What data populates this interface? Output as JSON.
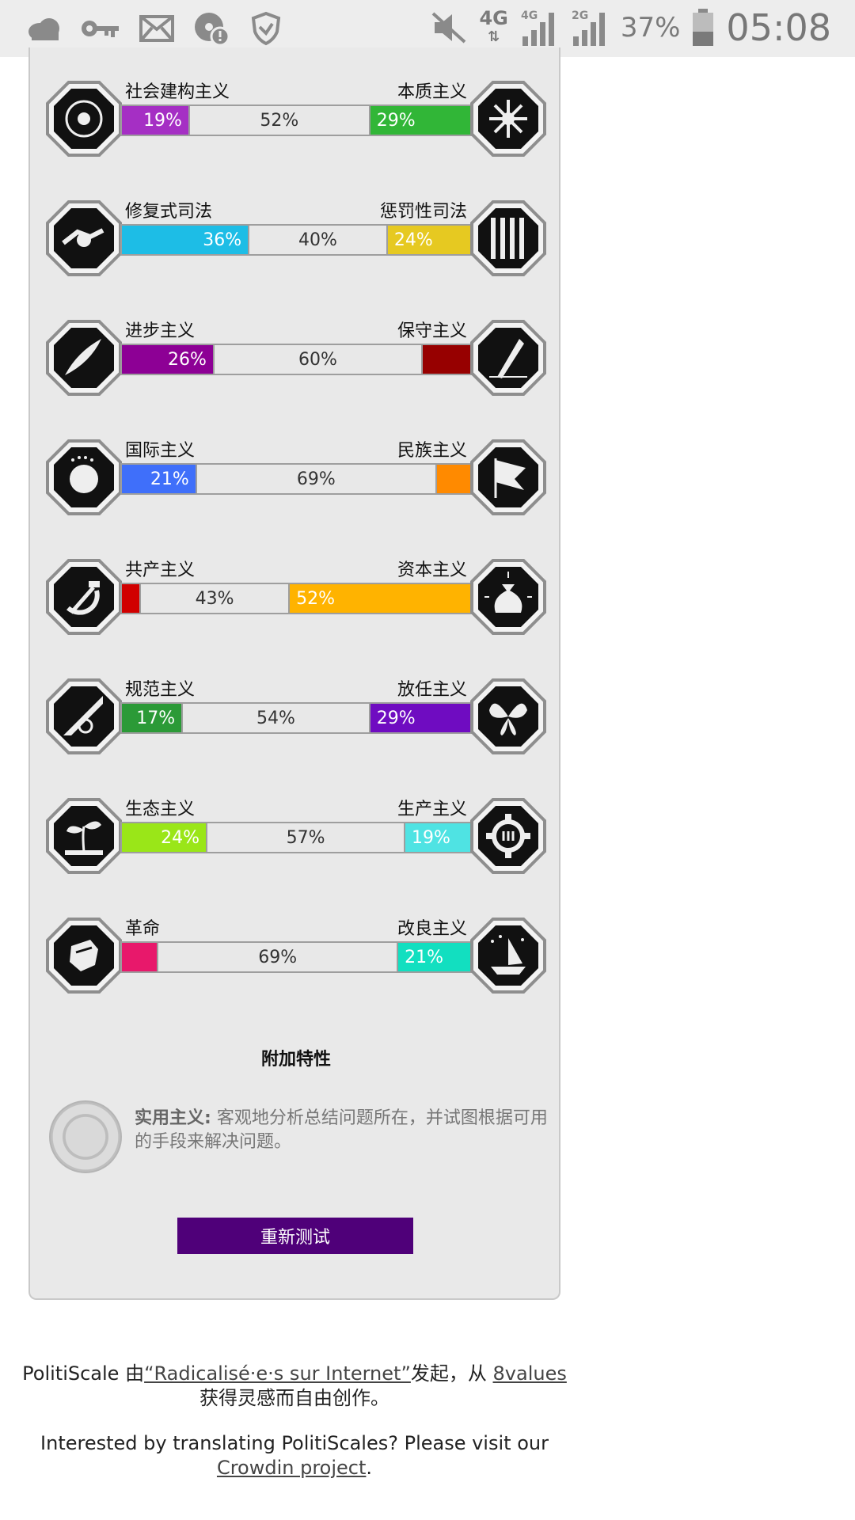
{
  "status_bar": {
    "network_4g": "4G",
    "network_4g_small": "4G",
    "network_2g": "2G",
    "battery": "37%",
    "time": "05:08"
  },
  "axes": [
    {
      "left_label": "社会建构主义",
      "right_label": "本质主义",
      "left_pct": 19,
      "center_pct": 52,
      "right_pct": 29,
      "left_text": "19%",
      "center_text": "52%",
      "right_text": "29%",
      "left_color": "#a52fc4",
      "right_color": "#31b637",
      "left_icon": "eye-icon",
      "right_icon": "flower-icon"
    },
    {
      "left_label": "修复式司法",
      "right_label": "惩罚性司法",
      "left_pct": 36,
      "center_pct": 40,
      "right_pct": 24,
      "left_text": "36%",
      "center_text": "40%",
      "right_text": "24%",
      "left_color": "#1dbde6",
      "right_color": "#e6c921",
      "left_icon": "handshake-icon",
      "right_icon": "prison-bars-icon"
    },
    {
      "left_label": "进步主义",
      "right_label": "保守主义",
      "left_pct": 26,
      "center_pct": 60,
      "right_pct": 14,
      "left_text": "26%",
      "center_text": "60%",
      "right_text": "",
      "left_color": "#8d0095",
      "right_color": "#970000",
      "left_icon": "rocket-icon",
      "right_icon": "quill-icon"
    },
    {
      "left_label": "国际主义",
      "right_label": "民族主义",
      "left_pct": 21,
      "center_pct": 69,
      "right_pct": 10,
      "left_text": "21%",
      "center_text": "69%",
      "right_text": "",
      "left_color": "#3f6ffa",
      "right_color": "#ff8a00",
      "left_icon": "globe-icon",
      "right_icon": "flag-icon"
    },
    {
      "left_label": "共产主义",
      "right_label": "资本主义",
      "left_pct": 5,
      "center_pct": 43,
      "right_pct": 52,
      "left_text": "",
      "center_text": "43%",
      "right_text": "52%",
      "left_color": "#d10000",
      "right_color": "#ffb300",
      "left_icon": "hammer-sickle-icon",
      "right_icon": "money-bag-icon"
    },
    {
      "left_label": "规范主义",
      "right_label": "放任主义",
      "left_pct": 17,
      "center_pct": 54,
      "right_pct": 29,
      "left_text": "17%",
      "center_text": "54%",
      "right_text": "29%",
      "left_color": "#2b9a37",
      "right_color": "#6f0cc1",
      "left_icon": "ruler-icon",
      "right_icon": "butterfly-icon"
    },
    {
      "left_label": "生态主义",
      "right_label": "生产主义",
      "left_pct": 24,
      "center_pct": 57,
      "right_pct": 19,
      "left_text": "24%",
      "center_text": "57%",
      "right_text": "19%",
      "left_color": "#9ae618",
      "right_color": "#4fe3e3",
      "left_icon": "sprout-icon",
      "right_icon": "gear-icon"
    },
    {
      "left_label": "革命",
      "right_label": "改良主义",
      "left_pct": 10,
      "center_pct": 69,
      "right_pct": 21,
      "left_text": "",
      "center_text": "69%",
      "right_text": "21%",
      "left_color": "#e8186b",
      "right_color": "#12dfc0",
      "left_icon": "fist-icon",
      "right_icon": "boat-icon"
    }
  ],
  "bonus": {
    "title": "附加特性",
    "trait_name": "实用主义:",
    "trait_desc": "客观地分析总结问题所在，并试图根据可用的手段来解决问题。",
    "trait_icon": "pragmatism-seal-icon"
  },
  "retry_button": "重新测试",
  "footer": {
    "line1_prefix": "PolitiScale 由",
    "line1_link": "“Radicalisé·e·s sur Internet”",
    "line1_mid": "发起，从 ",
    "line1_link2": "8values",
    "line1_suffix": "获得灵感而自由创作。",
    "line2_text": "Interested by translating PolitiScales? Please visit our",
    "line2_link": "Crowdin project",
    "line2_end": "."
  }
}
